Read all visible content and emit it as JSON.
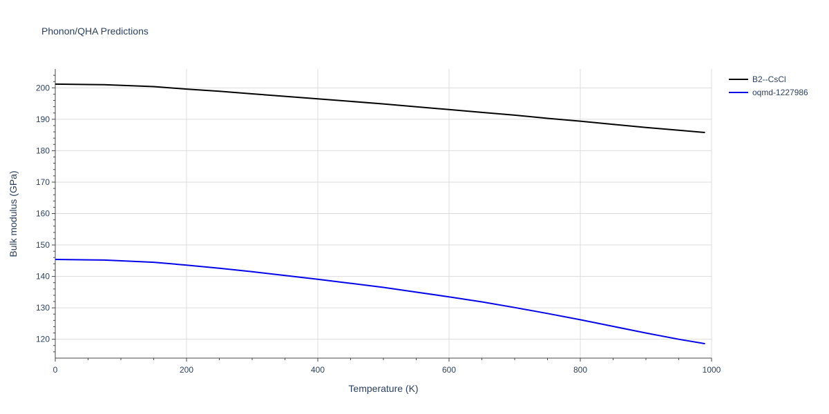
{
  "title": "Phonon/QHA Predictions",
  "chart_data": {
    "type": "line",
    "title": "Phonon/QHA Predictions",
    "xlabel": "Temperature (K)",
    "ylabel": "Bulk modulus (GPa)",
    "xlim": [
      0,
      1000
    ],
    "ylim": [
      114,
      206
    ],
    "xticks": [
      0,
      200,
      400,
      600,
      800,
      1000
    ],
    "yticks": [
      120,
      130,
      140,
      150,
      160,
      170,
      180,
      190,
      200
    ],
    "grid": true,
    "legend_position": "top-right",
    "series": [
      {
        "name": "B2--CsCl",
        "color": "#000000",
        "x": [
          0,
          75,
          150,
          200,
          250,
          300,
          350,
          400,
          450,
          500,
          550,
          600,
          650,
          700,
          750,
          800,
          850,
          900,
          950,
          990
        ],
        "y": [
          201.2,
          201.0,
          200.4,
          199.6,
          198.9,
          198.1,
          197.3,
          196.5,
          195.7,
          194.9,
          194.0,
          193.1,
          192.2,
          191.3,
          190.3,
          189.4,
          188.4,
          187.4,
          186.5,
          185.8
        ]
      },
      {
        "name": "oqmd-1227986",
        "color": "#0000ee",
        "x": [
          0,
          75,
          150,
          200,
          250,
          300,
          350,
          400,
          450,
          500,
          550,
          600,
          650,
          700,
          750,
          800,
          850,
          900,
          950,
          990
        ],
        "y": [
          145.4,
          145.2,
          144.5,
          143.6,
          142.6,
          141.5,
          140.3,
          139.1,
          137.8,
          136.5,
          135.0,
          133.5,
          131.9,
          130.1,
          128.2,
          126.2,
          124.1,
          122.0,
          120.0,
          118.6
        ]
      }
    ]
  }
}
